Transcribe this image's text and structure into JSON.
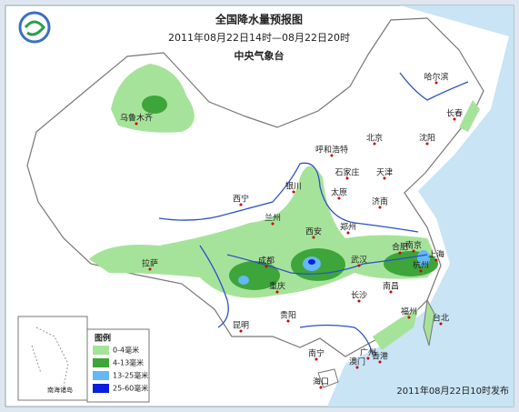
{
  "header": {
    "title": "全国降水量预报图",
    "period": "2011年08月22日14时—08月22日20时",
    "issuer": "中央气象台"
  },
  "cities": [
    "乌鲁木齐",
    "哈尔滨",
    "长春",
    "沈阳",
    "呼和浩特",
    "北京",
    "天津",
    "石家庄",
    "银川",
    "太原",
    "济南",
    "西宁",
    "兰州",
    "郑州",
    "西安",
    "拉萨",
    "成都",
    "合肥",
    "南京",
    "上海",
    "武汉",
    "杭州",
    "重庆",
    "长沙",
    "南昌",
    "贵阳",
    "福州",
    "台北",
    "昆明",
    "广州",
    "南宁",
    "香港",
    "澳门",
    "海口"
  ],
  "inset": {
    "label": "南海诸岛"
  },
  "legend": {
    "title": "图例",
    "items": [
      {
        "label": "0-4毫米",
        "color": "#a6e39a"
      },
      {
        "label": "4-13毫米",
        "color": "#3da53a"
      },
      {
        "label": "13-25毫米",
        "color": "#63b8f5"
      },
      {
        "label": "25-60毫米",
        "color": "#0a1ee0"
      }
    ]
  },
  "footer": {
    "issued": "2011年08月22日10时发布"
  }
}
